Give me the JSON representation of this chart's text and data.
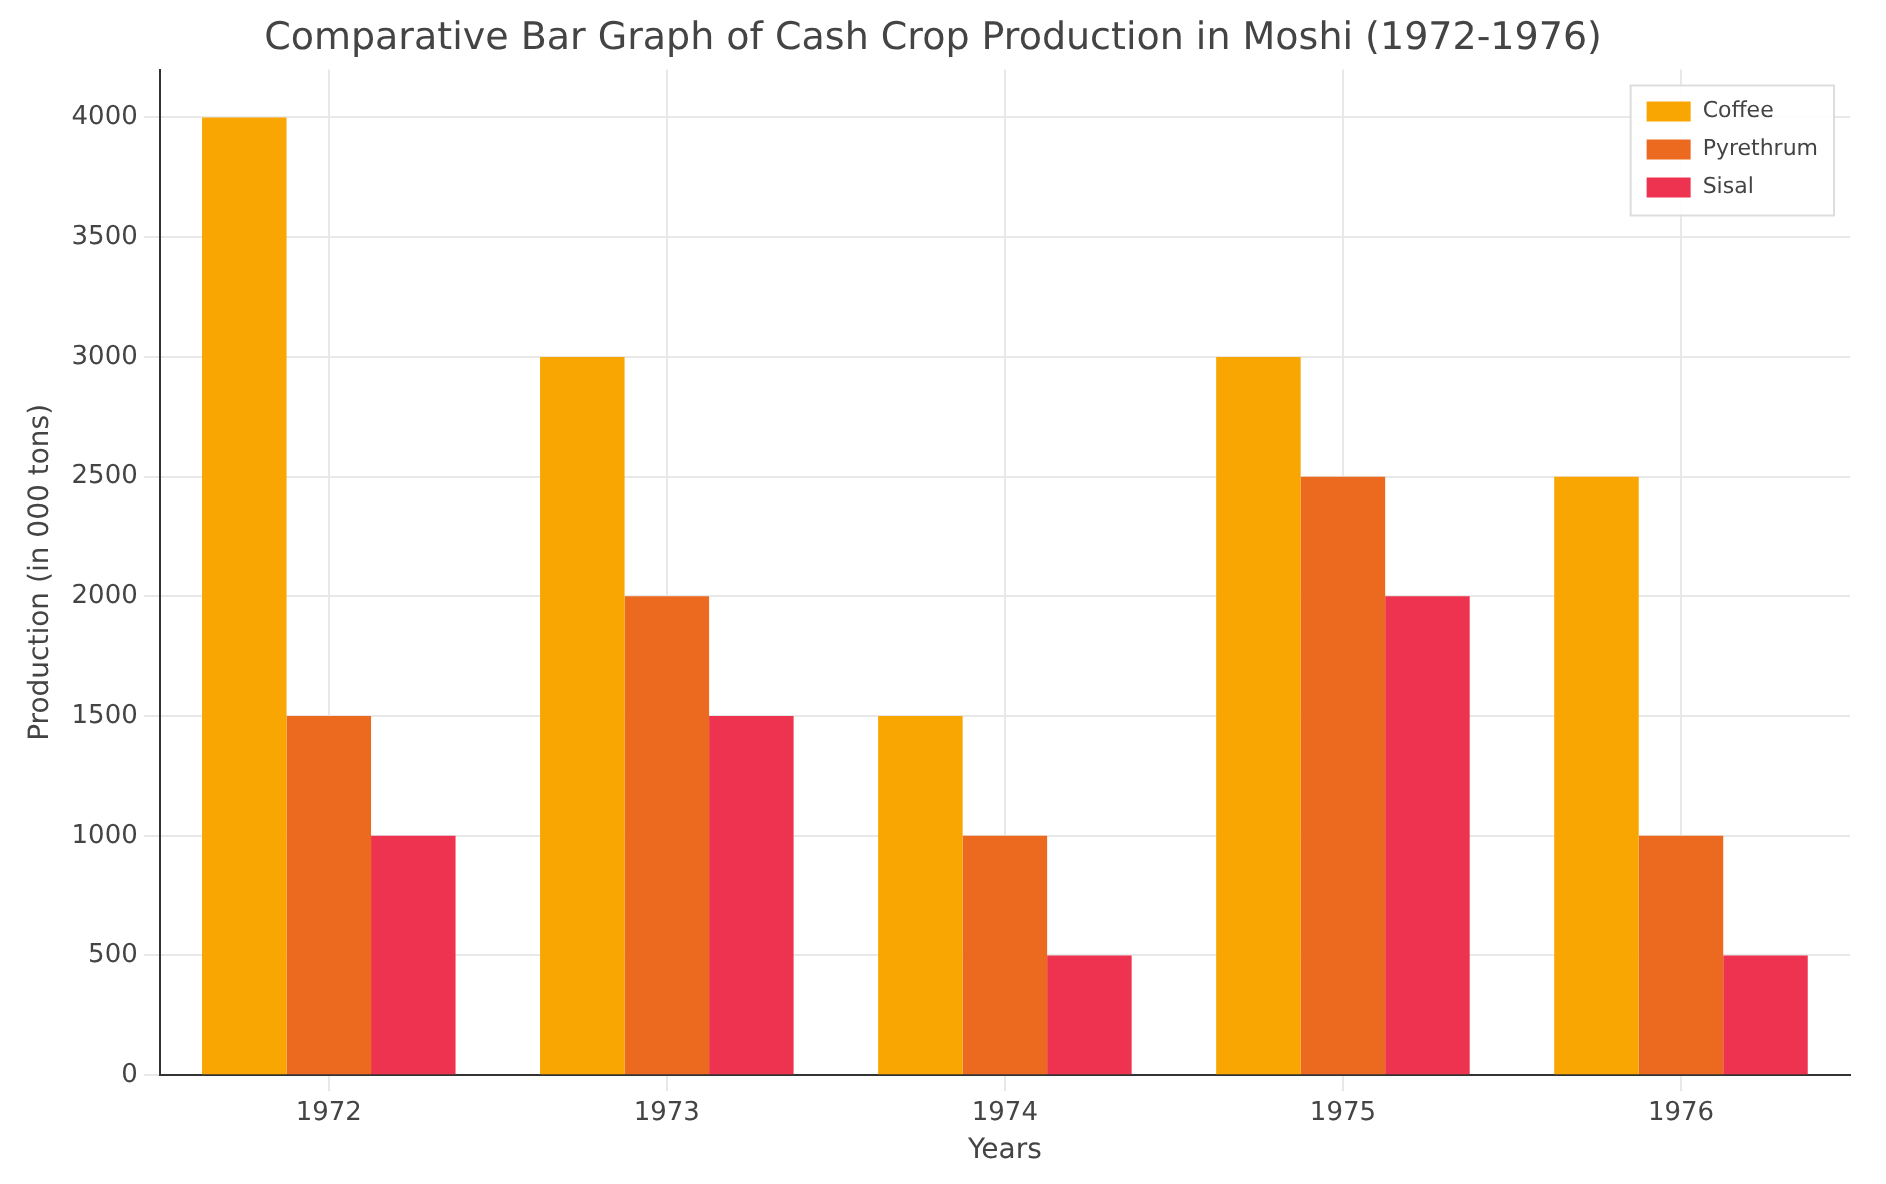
{
  "chart_data": {
    "type": "bar",
    "title": "Comparative Bar Graph of Cash Crop Production in Moshi (1972-1976)",
    "xlabel": "Years",
    "ylabel": "Production (in 000 tons)",
    "categories": [
      "1972",
      "1973",
      "1974",
      "1975",
      "1976"
    ],
    "series": [
      {
        "name": "Coffee",
        "color": "#f9a602",
        "values": [
          4000,
          3000,
          1500,
          3000,
          2500
        ]
      },
      {
        "name": "Pyrethrum",
        "color": "#ec6a1f",
        "values": [
          1500,
          2000,
          1000,
          2500,
          1000
        ]
      },
      {
        "name": "Sisal",
        "color": "#ee3350",
        "values": [
          1000,
          1500,
          500,
          2000,
          500
        ]
      }
    ],
    "ylim": [
      0,
      4200
    ],
    "yticks": [
      0,
      500,
      1000,
      1500,
      2000,
      2500,
      3000,
      3500,
      4000
    ],
    "grid": true,
    "legend": "top right"
  }
}
